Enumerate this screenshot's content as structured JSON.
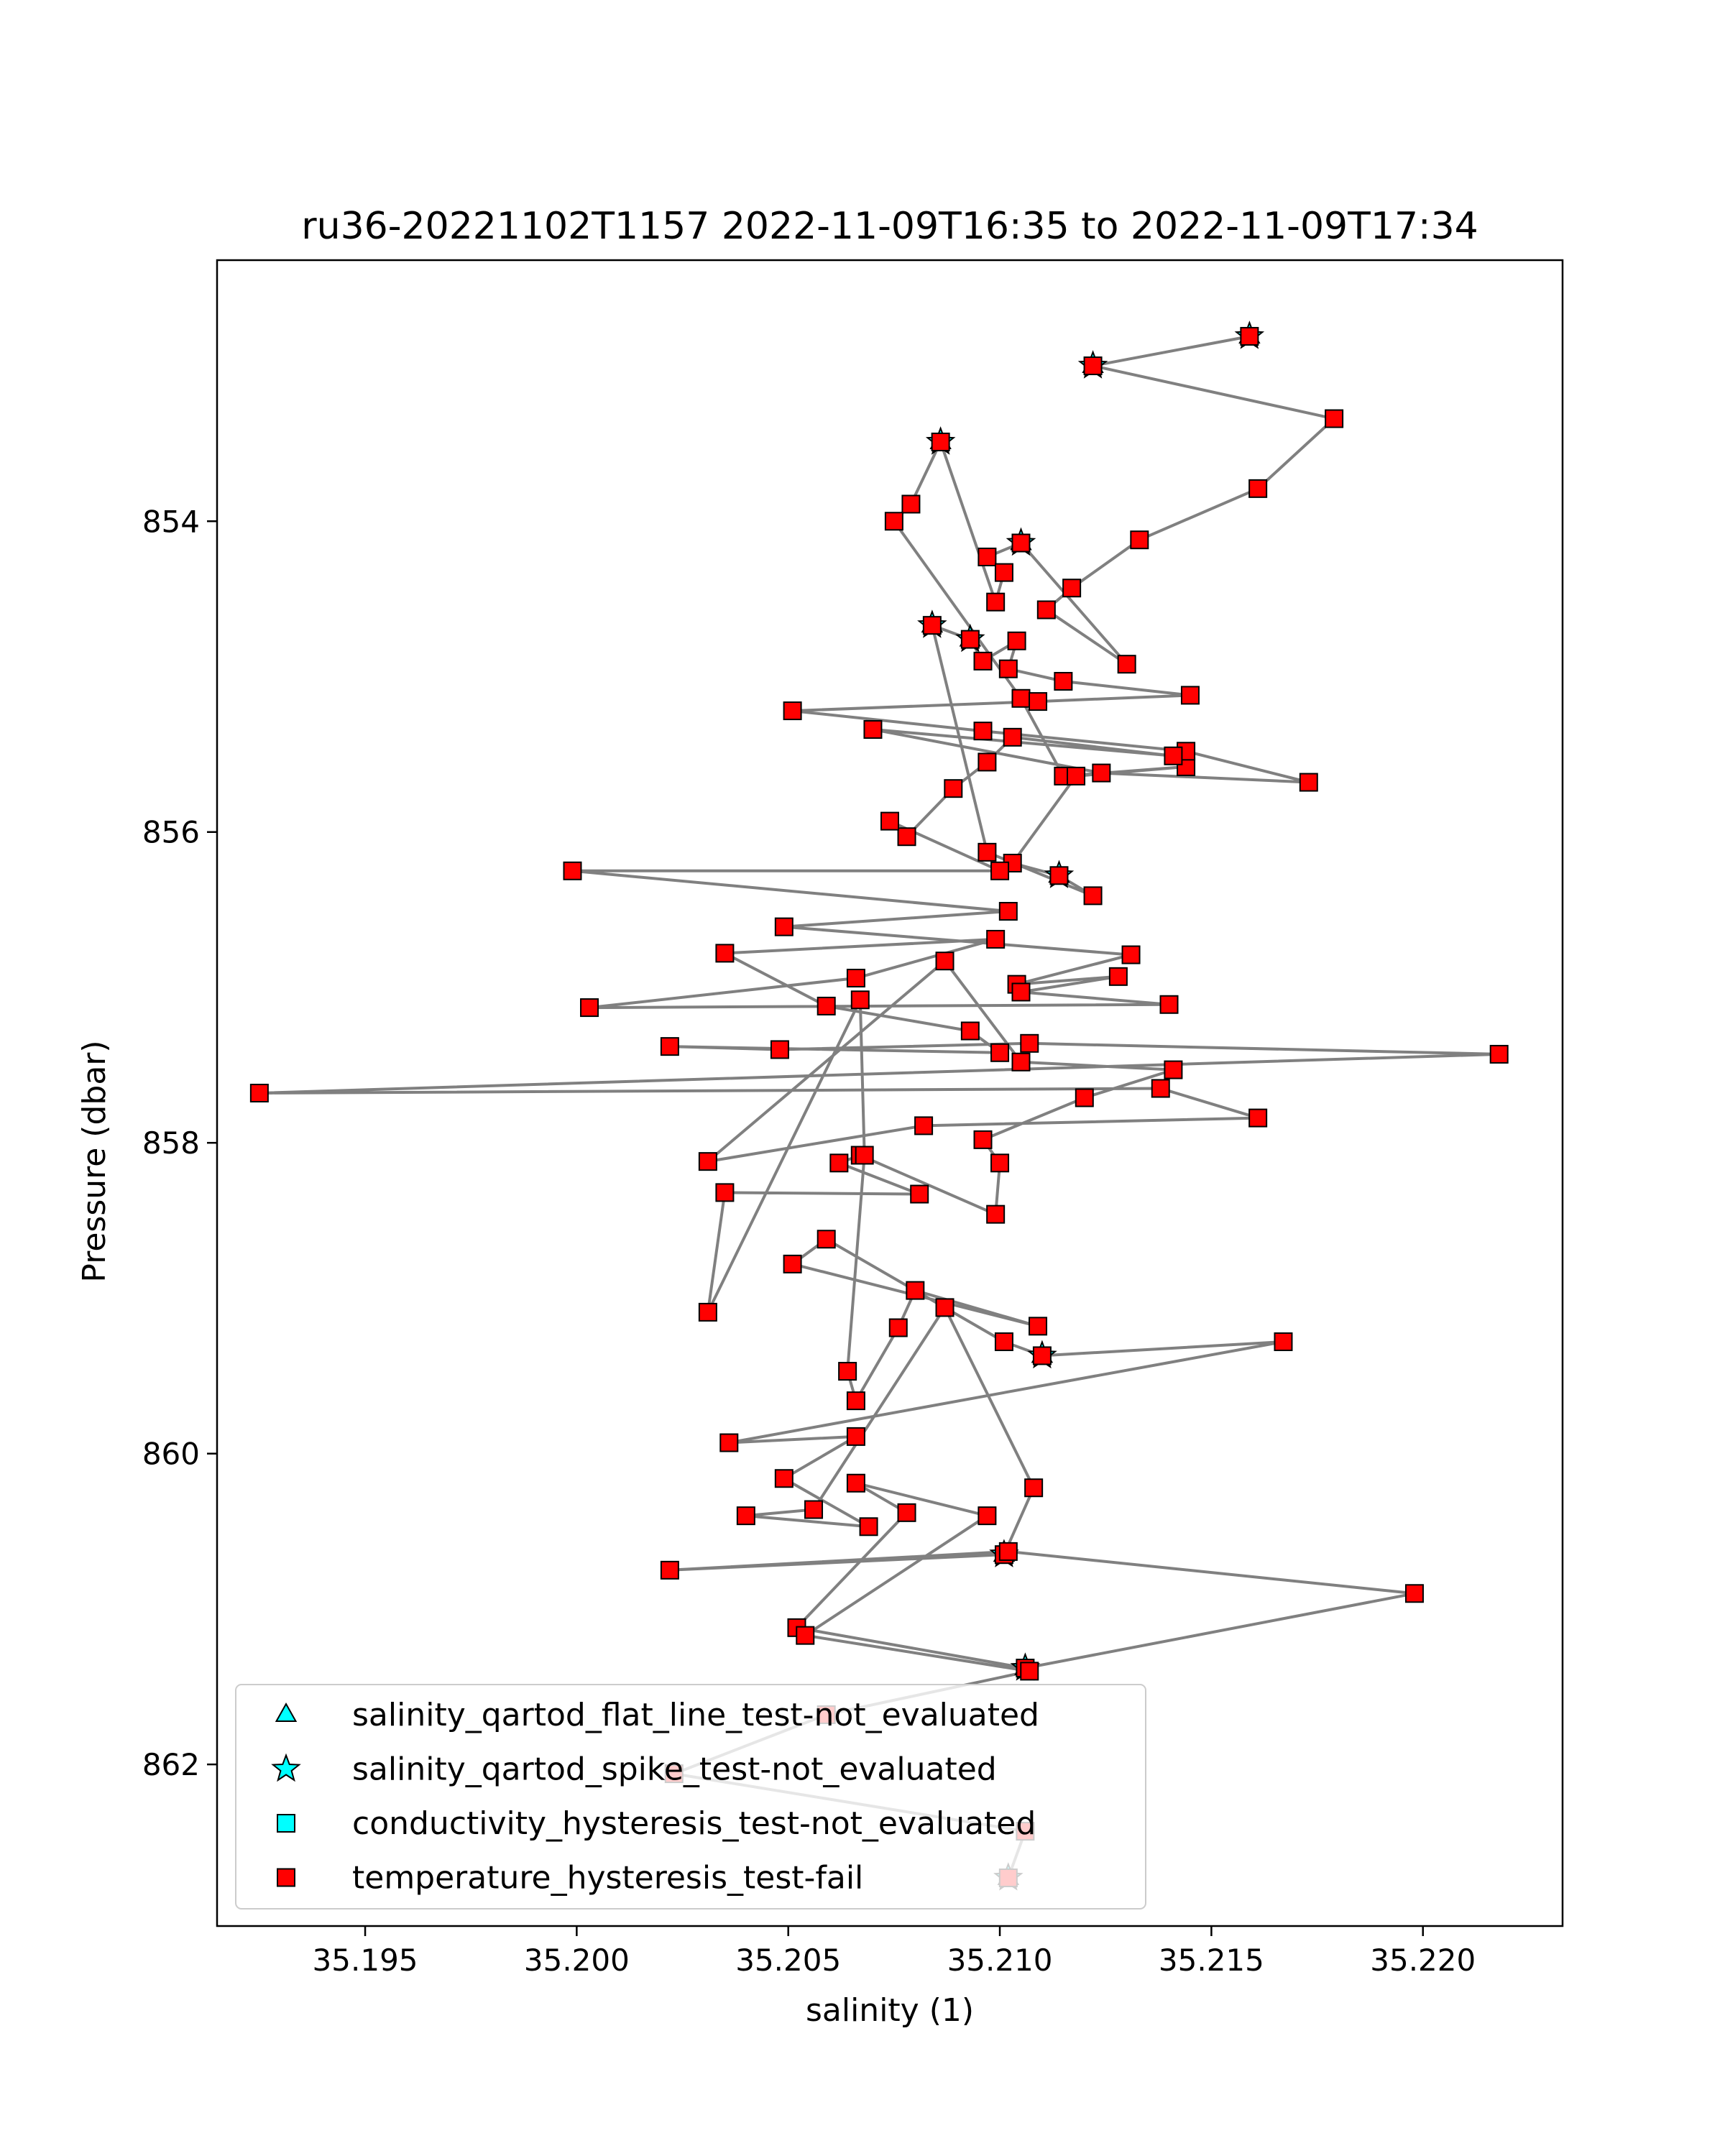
{
  "chart_data": {
    "type": "line",
    "title": "ru36-20221102T1157 2022-11-09T16:35 to 2022-11-09T17:34",
    "xlabel": "salinity (1)",
    "ylabel": "Pressure (dbar)",
    "xlim": [
      35.1915,
      35.2233
    ],
    "ylim": [
      863.04,
      852.32
    ],
    "y_inverted": true,
    "xticks": [
      "35.195",
      "35.200",
      "35.205",
      "35.210",
      "35.215",
      "35.220"
    ],
    "xtick_values": [
      35.195,
      35.2,
      35.205,
      35.21,
      35.215,
      35.22
    ],
    "yticks": [
      "854",
      "856",
      "858",
      "860",
      "862"
    ],
    "ytick_values": [
      854,
      856,
      858,
      860,
      862
    ],
    "grid": false,
    "line_color": "#808080",
    "series": [
      {
        "name": "salinity",
        "marker": "square",
        "color": "#ff0000",
        "points": [
          [
            35.2159,
            852.81
          ],
          [
            35.2122,
            853.0
          ],
          [
            35.2179,
            853.34
          ],
          [
            35.2161,
            853.79
          ],
          [
            35.2133,
            854.12
          ],
          [
            35.2117,
            854.43
          ],
          [
            35.2111,
            854.57
          ],
          [
            35.213,
            854.92
          ],
          [
            35.2105,
            854.14
          ],
          [
            35.2097,
            854.23
          ],
          [
            35.2101,
            854.33
          ],
          [
            35.2099,
            854.52
          ],
          [
            35.2086,
            853.49
          ],
          [
            35.2079,
            853.89
          ],
          [
            35.2075,
            854.0
          ],
          [
            35.2105,
            855.14
          ],
          [
            35.2115,
            855.64
          ],
          [
            35.2144,
            855.58
          ],
          [
            35.2118,
            855.64
          ],
          [
            35.2103,
            856.2
          ],
          [
            35.2114,
            856.28
          ],
          [
            35.2122,
            856.41
          ],
          [
            35.2097,
            856.13
          ],
          [
            35.2084,
            854.67
          ],
          [
            35.2093,
            854.76
          ],
          [
            35.2096,
            854.9
          ],
          [
            35.2104,
            854.77
          ],
          [
            35.2102,
            854.95
          ],
          [
            35.2115,
            855.03
          ],
          [
            35.2145,
            855.12
          ],
          [
            35.2109,
            855.16
          ],
          [
            35.2051,
            855.22
          ],
          [
            35.2096,
            855.35
          ],
          [
            35.2144,
            855.48
          ],
          [
            35.2173,
            855.68
          ],
          [
            35.2124,
            855.62
          ],
          [
            35.207,
            855.34
          ],
          [
            35.2141,
            855.51
          ],
          [
            35.2103,
            855.39
          ],
          [
            35.2097,
            855.55
          ],
          [
            35.2089,
            855.72
          ],
          [
            35.2078,
            856.03
          ],
          [
            35.2074,
            855.93
          ],
          [
            35.21,
            856.25
          ],
          [
            35.1999,
            856.25
          ],
          [
            35.2102,
            856.51
          ],
          [
            35.2049,
            856.61
          ],
          [
            35.2131,
            856.79
          ],
          [
            35.2104,
            856.98
          ],
          [
            35.2128,
            856.93
          ],
          [
            35.2105,
            857.03
          ],
          [
            35.214,
            857.11
          ],
          [
            35.2003,
            857.13
          ],
          [
            35.2066,
            856.94
          ],
          [
            35.2099,
            856.69
          ],
          [
            35.2035,
            856.78
          ],
          [
            35.2059,
            857.12
          ],
          [
            35.2093,
            857.28
          ],
          [
            35.21,
            857.42
          ],
          [
            35.2022,
            857.38
          ],
          [
            35.2048,
            857.4
          ],
          [
            35.2107,
            857.36
          ],
          [
            35.2218,
            857.43
          ],
          [
            35.1925,
            857.68
          ],
          [
            35.2138,
            857.65
          ],
          [
            35.2161,
            857.84
          ],
          [
            35.2082,
            857.89
          ],
          [
            35.2031,
            858.12
          ],
          [
            35.2087,
            856.83
          ],
          [
            35.2105,
            857.48
          ],
          [
            35.2141,
            857.53
          ],
          [
            35.212,
            857.71
          ],
          [
            35.2096,
            857.98
          ],
          [
            35.21,
            858.13
          ],
          [
            35.2099,
            858.46
          ],
          [
            35.2067,
            858.08
          ],
          [
            35.2062,
            858.13
          ],
          [
            35.2081,
            858.33
          ],
          [
            35.2035,
            858.32
          ],
          [
            35.2031,
            859.09
          ],
          [
            35.2067,
            857.08
          ],
          [
            35.2068,
            858.08
          ],
          [
            35.2064,
            859.47
          ],
          [
            35.2066,
            859.66
          ],
          [
            35.2076,
            859.19
          ],
          [
            35.208,
            858.95
          ],
          [
            35.2109,
            859.18
          ],
          [
            35.2051,
            858.78
          ],
          [
            35.2059,
            858.62
          ],
          [
            35.2101,
            859.28
          ],
          [
            35.211,
            859.37
          ],
          [
            35.2167,
            859.28
          ],
          [
            35.2036,
            859.93
          ],
          [
            35.2066,
            859.89
          ],
          [
            35.2049,
            860.16
          ],
          [
            35.2069,
            860.47
          ],
          [
            35.204,
            860.4
          ],
          [
            35.2056,
            860.36
          ],
          [
            35.2087,
            859.06
          ],
          [
            35.2108,
            860.22
          ],
          [
            35.2101,
            860.65
          ],
          [
            35.2022,
            860.75
          ],
          [
            35.2102,
            860.63
          ],
          [
            35.2198,
            860.9
          ],
          [
            35.2106,
            861.38
          ],
          [
            35.2052,
            861.12
          ],
          [
            35.2078,
            860.38
          ],
          [
            35.2066,
            860.19
          ],
          [
            35.2097,
            860.4
          ],
          [
            35.2054,
            861.17
          ],
          [
            35.2107,
            861.4
          ],
          [
            35.2059,
            861.68
          ],
          [
            35.2023,
            862.06
          ],
          [
            35.2106,
            862.43
          ],
          [
            35.2102,
            862.73
          ]
        ]
      },
      {
        "name": "spike_not_evaluated",
        "marker": "star",
        "color": "#00ffff",
        "points": [
          [
            35.2159,
            852.81
          ],
          [
            35.2122,
            853.0
          ],
          [
            35.2086,
            853.49
          ],
          [
            35.2105,
            854.14
          ],
          [
            35.2084,
            854.67
          ],
          [
            35.2093,
            854.76
          ],
          [
            35.2114,
            856.28
          ],
          [
            35.211,
            859.37
          ],
          [
            35.2101,
            860.65
          ],
          [
            35.2106,
            861.38
          ],
          [
            35.2102,
            862.73
          ]
        ]
      },
      {
        "name": "flat_line_not_evaluated",
        "marker": "triangle",
        "color": "#00ffff",
        "points": [
          [
            35.2159,
            852.81
          ],
          [
            35.2122,
            853.0
          ],
          [
            35.2086,
            853.49
          ],
          [
            35.2105,
            854.14
          ],
          [
            35.2084,
            854.67
          ],
          [
            35.2093,
            854.76
          ],
          [
            35.2114,
            856.28
          ],
          [
            35.211,
            859.37
          ],
          [
            35.2101,
            860.65
          ],
          [
            35.2106,
            861.38
          ],
          [
            35.2102,
            862.73
          ]
        ]
      }
    ],
    "legend": {
      "placement": "lower-left",
      "entries": [
        {
          "label": "salinity_qartod_flat_line_test-not_evaluated",
          "marker": "triangle",
          "color": "#00ffff"
        },
        {
          "label": "salinity_qartod_spike_test-not_evaluated",
          "marker": "star",
          "color": "#00ffff"
        },
        {
          "label": "conductivity_hysteresis_test-not_evaluated",
          "marker": "square",
          "color": "#00ffff"
        },
        {
          "label": "temperature_hysteresis_test-fail",
          "marker": "square",
          "color": "#ff0000"
        }
      ]
    }
  }
}
